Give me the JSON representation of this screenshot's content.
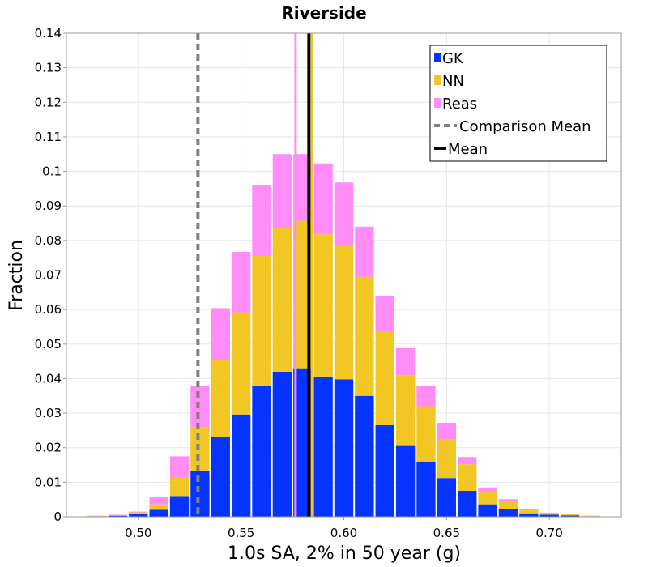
{
  "chart_data": {
    "type": "bar",
    "stacked": true,
    "title": "Riverside",
    "xlabel": "1.0s SA, 2% in 50 year (g)",
    "ylabel": "Fraction",
    "xlim": [
      0.465,
      0.735
    ],
    "ylim": [
      0,
      0.14
    ],
    "xticks": [
      0.5,
      0.55,
      0.6,
      0.65,
      0.7
    ],
    "xtick_labels": [
      "0.50",
      "0.55",
      "0.60",
      "0.65",
      "0.70"
    ],
    "yticks": [
      0,
      0.01,
      0.02,
      0.03,
      0.04,
      0.05,
      0.06,
      0.07,
      0.08,
      0.09,
      0.1,
      0.11,
      0.12,
      0.13,
      0.14
    ],
    "ytick_labels": [
      "0",
      "0.01",
      "0.02",
      "0.03",
      "0.04",
      "0.05",
      "0.06",
      "0.07",
      "0.08",
      "0.09",
      "0.1",
      "0.11",
      "0.12",
      "0.13",
      "0.14"
    ],
    "grid": true,
    "legend_position": "top-right",
    "bin_width": 0.01,
    "x": [
      0.48,
      0.49,
      0.5,
      0.51,
      0.52,
      0.53,
      0.54,
      0.55,
      0.56,
      0.57,
      0.58,
      0.59,
      0.6,
      0.61,
      0.62,
      0.63,
      0.64,
      0.65,
      0.66,
      0.67,
      0.68,
      0.69,
      0.7,
      0.71,
      0.72
    ],
    "series": [
      {
        "name": "GK",
        "color": "#0533ff",
        "values": [
          0.0001,
          0.0003,
          0.0008,
          0.002,
          0.006,
          0.0132,
          0.023,
          0.0296,
          0.038,
          0.042,
          0.043,
          0.0406,
          0.0398,
          0.035,
          0.0265,
          0.0205,
          0.016,
          0.0112,
          0.0075,
          0.0036,
          0.0022,
          0.001,
          0.0006,
          0.0004,
          0.0001
        ]
      },
      {
        "name": "NN",
        "color": "#f2c623",
        "values": [
          0.0001,
          0.0002,
          0.0005,
          0.0016,
          0.0055,
          0.0128,
          0.0224,
          0.0296,
          0.0375,
          0.0415,
          0.0427,
          0.0412,
          0.039,
          0.0345,
          0.027,
          0.0205,
          0.016,
          0.0113,
          0.0077,
          0.0036,
          0.0023,
          0.0009,
          0.0005,
          0.0003,
          0.0001
        ]
      },
      {
        "name": "Reas",
        "color": "#ff8cf7",
        "values": [
          0.0001,
          0.0001,
          0.0002,
          0.002,
          0.006,
          0.0118,
          0.015,
          0.0175,
          0.0205,
          0.0215,
          0.0193,
          0.0205,
          0.018,
          0.0145,
          0.0103,
          0.0078,
          0.006,
          0.0047,
          0.0021,
          0.0013,
          0.0006,
          0.0002,
          0.0001,
          0.0001,
          0.0001
        ]
      }
    ],
    "lines": [
      {
        "name": "Comparison Mean",
        "x": 0.529,
        "style": "dashed",
        "color": "#808080"
      },
      {
        "name": "Mean",
        "x": 0.583,
        "style": "solid",
        "color": "#000000"
      },
      {
        "name": "",
        "x": 0.5765,
        "style": "solid",
        "color": "#ff8cf7"
      },
      {
        "name": "",
        "x": 0.5845,
        "style": "solid",
        "color": "#f2c623"
      }
    ]
  }
}
